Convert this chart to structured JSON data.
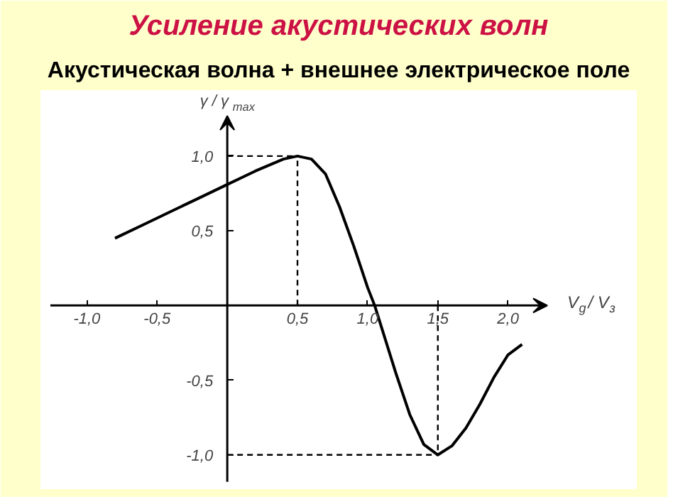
{
  "chart_data": {
    "type": "line",
    "title": "Усиление акустических волн",
    "subtitle": "Акустическая волна + внешнее электрическое поле",
    "xlabel": "V$_{g}$/ V$_{з}$",
    "ylabel": "γ / γ$_{max}$",
    "x": [
      -0.8,
      -0.6,
      -0.4,
      -0.2,
      0,
      0.2,
      0.4,
      0.5,
      0.6,
      0.7,
      0.8,
      0.9,
      1.0,
      1.05,
      1.1,
      1.2,
      1.3,
      1.4,
      1.5,
      1.6,
      1.7,
      1.8,
      1.9,
      2.0,
      2.1
    ],
    "series": [
      {
        "color": "#000000",
        "values": [
          0.45,
          0.54,
          0.63,
          0.72,
          0.81,
          0.9,
          0.98,
          1.0,
          0.98,
          0.88,
          0.66,
          0.4,
          0.12,
          0,
          -0.15,
          -0.45,
          -0.73,
          -0.93,
          -1.0,
          -0.94,
          -0.82,
          -0.66,
          -0.48,
          -0.33,
          -0.26
        ]
      }
    ],
    "xlim": [
      -1.26,
      2.28
    ],
    "ylim": [
      -1.18,
      1.27
    ],
    "xticks": [
      {
        "value": -1.0,
        "label": "-1,0"
      },
      {
        "value": -0.5,
        "label": "-0,5"
      },
      {
        "value": 0.5,
        "label": "0,5"
      },
      {
        "value": 1.0,
        "label": "1,0"
      },
      {
        "value": 1.5,
        "label": "1,5"
      },
      {
        "value": 2.0,
        "label": "2,0"
      }
    ],
    "yticks": [
      {
        "value": -1.0,
        "label": "-1,0"
      },
      {
        "value": -0.5,
        "label": "-0,5"
      },
      {
        "value": 0.5,
        "label": "0,5"
      },
      {
        "value": 1.0,
        "label": "1,0"
      }
    ],
    "ref_lines": [
      {
        "axis": "x",
        "value": 0.5,
        "line_style": "dashed"
      },
      {
        "axis": "x",
        "value": 1.5,
        "line_style": "dashed"
      },
      {
        "axis": "y",
        "value": 1.0,
        "line_style": "dashed"
      },
      {
        "axis": "y",
        "value": -1.0,
        "line_style": "dashed"
      }
    ],
    "grid": false,
    "marker": "none",
    "line_style": "solid"
  }
}
